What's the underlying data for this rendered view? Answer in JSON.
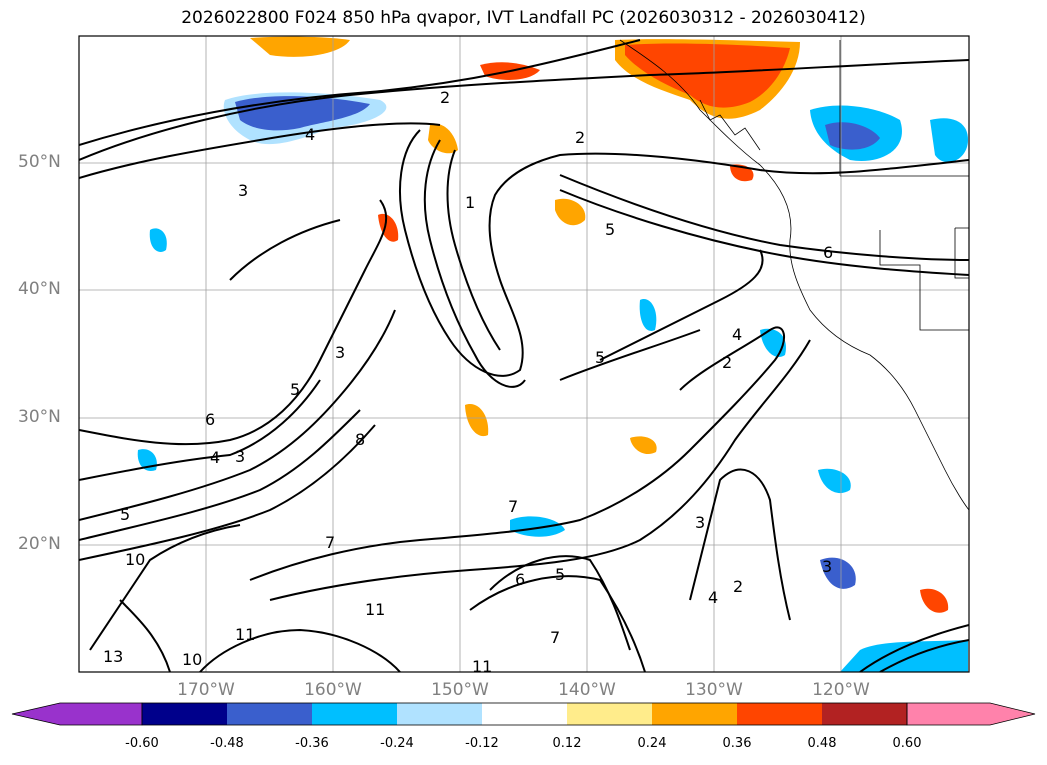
{
  "title": "2026022800 F024 850 hPa qvapor, IVT Landfall PC (2026030312 - 2026030412)",
  "lat_labels": [
    "50°N",
    "40°N",
    "30°N",
    "20°N"
  ],
  "lon_labels": [
    "170°W",
    "160°W",
    "150°W",
    "140°W",
    "130°W",
    "120°W"
  ],
  "colorbar": {
    "colors": [
      "#9932cc",
      "#00008b",
      "#3a5fcd",
      "#00bfff",
      "#b0e2ff",
      "#ffffff",
      "#ffec8b",
      "#ffa500",
      "#ff4500",
      "#b22222",
      "#ff82ab"
    ],
    "ticks": [
      "-0.60",
      "-0.48",
      "-0.36",
      "-0.24",
      "-0.12",
      "0.12",
      "0.24",
      "0.36",
      "0.48",
      "0.60"
    ]
  },
  "contour_labels": [
    "1",
    "2",
    "3",
    "4",
    "5",
    "6",
    "7",
    "8",
    "10",
    "11",
    "13"
  ]
}
